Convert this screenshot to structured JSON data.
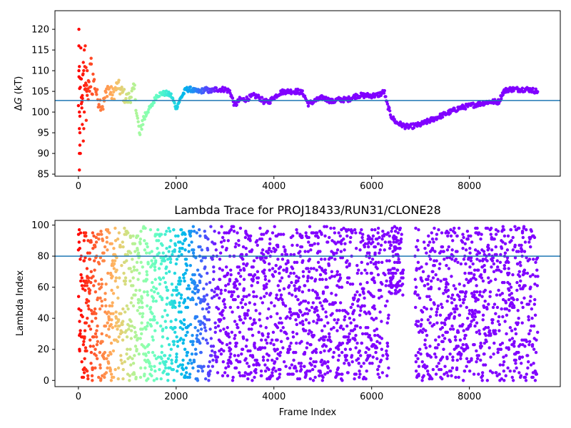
{
  "chart_data": [
    {
      "type": "scatter",
      "title": "",
      "xlabel": "",
      "ylabel": "ΔG (kT)",
      "ylabel_prefix": "Δ",
      "ylabel_var": "G",
      "ylabel_suffix": " (kT)",
      "xlim": [
        -480,
        9860
      ],
      "ylim": [
        84.5,
        124.5
      ],
      "xticks": [
        "0",
        "2000",
        "4000",
        "6000",
        "8000"
      ],
      "xtick_values": [
        0,
        2000,
        4000,
        6000,
        8000
      ],
      "yticks": [
        "85",
        "90",
        "95",
        "100",
        "105",
        "110",
        "115",
        "120"
      ],
      "ytick_values": [
        85,
        90,
        95,
        100,
        105,
        110,
        115,
        120
      ],
      "hline": {
        "y": 102.8,
        "color": "#1f77b4"
      },
      "colormap": "rainbow (red at early frames to violet at late frames)",
      "grid": false,
      "legend": "none",
      "trace_keypoints": {
        "x": [
          10,
          100,
          200,
          300,
          400,
          500,
          600,
          700,
          800,
          900,
          1000,
          1100,
          1150,
          1200,
          1260,
          1300,
          1400,
          1500,
          1600,
          1700,
          1800,
          1900,
          2000,
          2100,
          2200,
          2300,
          2400,
          2500,
          2600,
          2700,
          2800,
          2900,
          3000,
          3100,
          3200,
          3300,
          3400,
          3500,
          3600,
          3700,
          3800,
          3900,
          4000,
          4100,
          4200,
          4300,
          4400,
          4500,
          4600,
          4700,
          4800,
          4900,
          5000,
          5100,
          5200,
          5300,
          5400,
          5500,
          5600,
          5700,
          5800,
          5900,
          6000,
          6100,
          6200,
          6260,
          6300,
          6400,
          6500,
          6600,
          6700,
          6800,
          7000,
          7200,
          7400,
          7600,
          7800,
          8000,
          8200,
          8400,
          8600,
          8700,
          8800,
          9000,
          9200,
          9400
        ],
        "y": [
          103.5,
          106.5,
          107.5,
          108.5,
          103.0,
          101.5,
          106.0,
          104.0,
          106.5,
          104.5,
          103.0,
          104.5,
          105.5,
          99.0,
          94.0,
          97.5,
          100.0,
          101.5,
          104.0,
          104.5,
          104.5,
          104.0,
          101.0,
          103.5,
          105.5,
          105.5,
          105.0,
          105.0,
          105.5,
          105.0,
          105.5,
          105.5,
          105.5,
          105.0,
          101.5,
          103.0,
          103.0,
          103.5,
          104.0,
          103.5,
          102.5,
          102.5,
          103.5,
          104.5,
          105.0,
          105.0,
          105.0,
          105.0,
          104.5,
          102.0,
          102.5,
          103.0,
          103.5,
          103.0,
          102.5,
          103.0,
          103.0,
          103.0,
          103.5,
          104.0,
          104.0,
          104.0,
          104.0,
          104.0,
          104.5,
          105.0,
          102.5,
          99.0,
          97.5,
          97.0,
          96.5,
          96.5,
          97.0,
          98.0,
          99.0,
          100.0,
          101.0,
          101.5,
          102.0,
          102.5,
          102.5,
          105.0,
          105.5,
          105.5,
          105.5,
          105.0
        ]
      },
      "early_scatter_points": {
        "x": [
          10,
          10,
          20,
          10,
          20,
          30,
          20,
          30,
          40,
          20,
          50,
          20,
          30,
          60,
          80,
          100,
          120,
          140,
          160,
          180,
          60,
          80,
          100,
          120,
          150,
          170,
          200,
          230,
          260,
          40,
          70,
          90,
          110,
          130
        ],
        "y": [
          120,
          116,
          111,
          110,
          100,
          99,
          96,
          92,
          90,
          86,
          115.5,
          90,
          95,
          108,
          104,
          112,
          115,
          116,
          98,
          110,
          102,
          97,
          93,
          100,
          107,
          105,
          103,
          106,
          113,
          106,
          101,
          109,
          96,
          111
        ]
      }
    },
    {
      "type": "scatter",
      "title": "Lambda Trace for PROJ18433/RUN31/CLONE28",
      "xlabel": "Frame Index",
      "ylabel": "Lambda Index",
      "xlim": [
        -480,
        9860
      ],
      "ylim": [
        -4,
        103
      ],
      "xticks": [
        "0",
        "2000",
        "4000",
        "6000",
        "8000"
      ],
      "xtick_values": [
        0,
        2000,
        4000,
        6000,
        8000
      ],
      "yticks": [
        "0",
        "20",
        "40",
        "60",
        "80",
        "100"
      ],
      "ytick_values": [
        0,
        20,
        40,
        60,
        80,
        100
      ],
      "hline": {
        "y": 80,
        "color": "#1f77b4"
      },
      "colormap": "rainbow (red at early frames to violet at late frames)",
      "grid": false,
      "legend": "none",
      "frame_range": [
        0,
        9400
      ],
      "lambda_range": [
        0,
        99
      ],
      "gap_regions": [
        {
          "x": [
            6350,
            6650
          ],
          "lambda_min": 55,
          "note": "points only near the top"
        },
        {
          "x": [
            6650,
            6880
          ],
          "lambda_min": 100,
          "note": "empty"
        }
      ]
    }
  ]
}
